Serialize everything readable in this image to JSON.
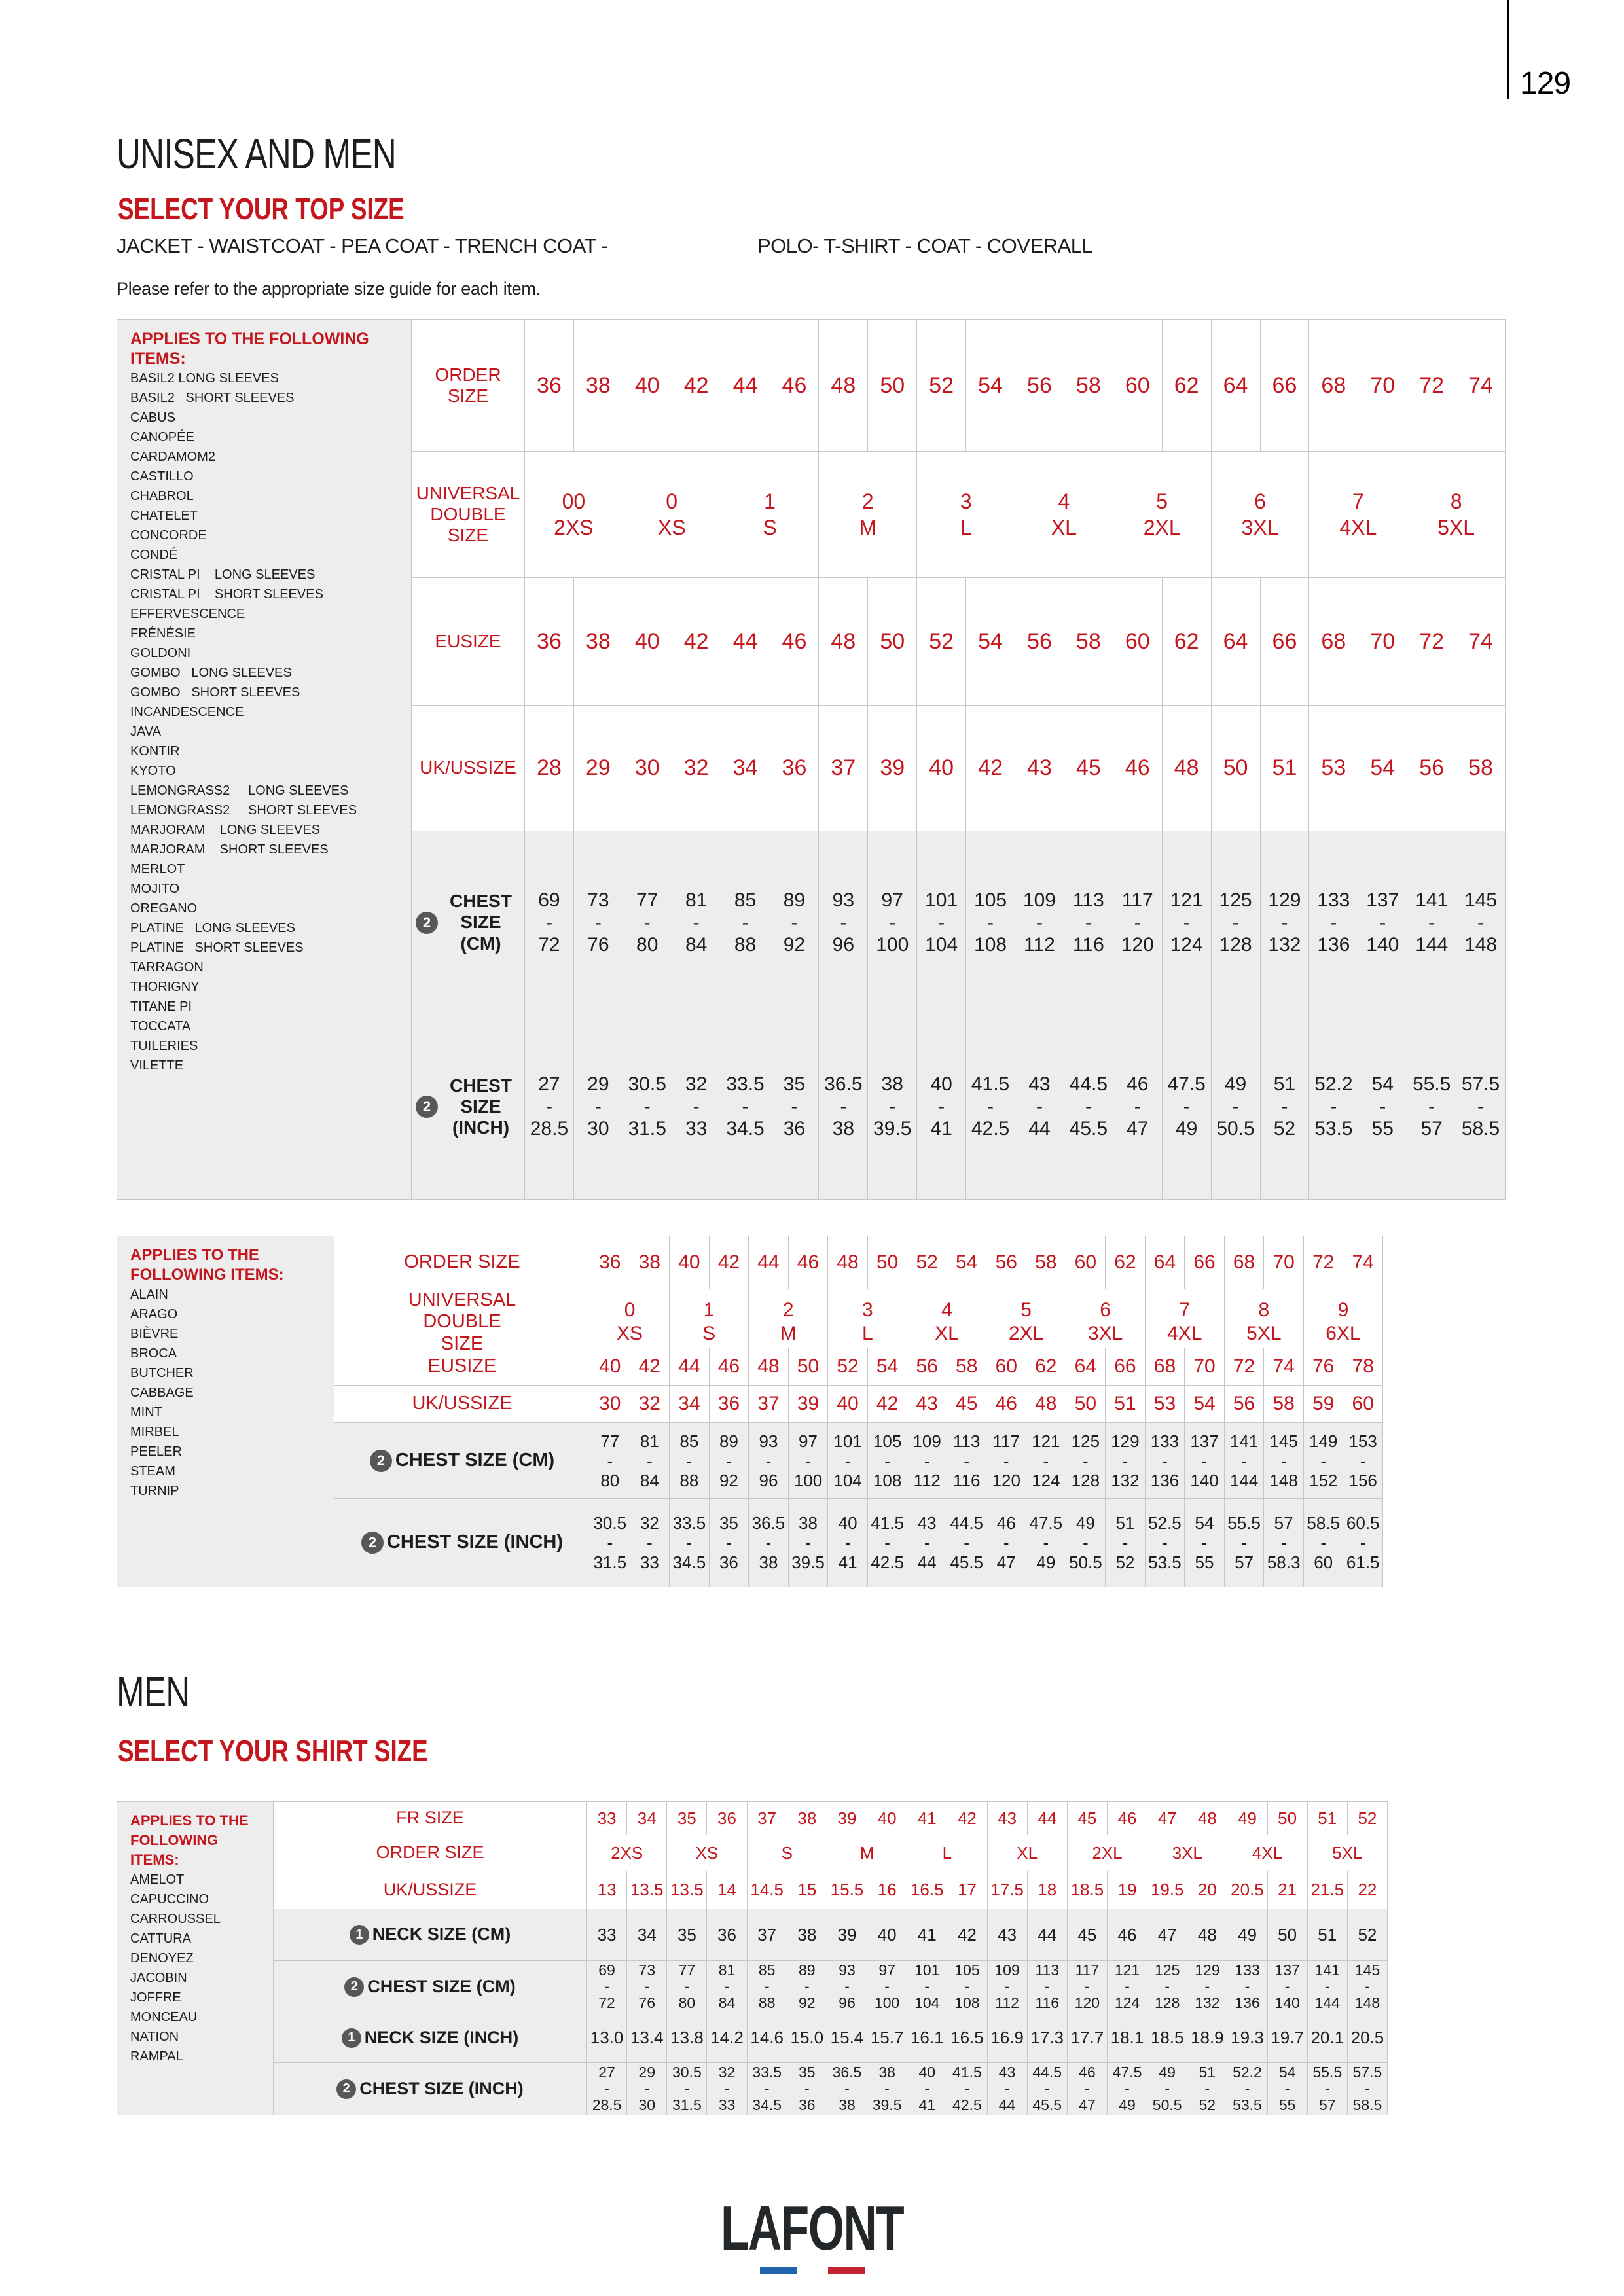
{
  "colors": {
    "red": "#c3161d",
    "ink": "#1d1d1b",
    "border": "#c6c6c6",
    "panel": "#ededed",
    "badge": "#575756",
    "logo-blue": "#2164ad",
    "logo-red": "#c32430"
  },
  "glyphs": {
    "range_dash": "-"
  },
  "page": {
    "number": "129"
  },
  "header": {
    "title": "UNISEX AND MEN",
    "subtitle": "SELECT YOUR TOP SIZE",
    "categories_left": "JACKET - WAISTCOAT - PEA COAT - TRENCH COAT -",
    "categories_right": "POLO- T-SHIRT - COAT - COVERALL",
    "note": "Please refer to the appropriate size guide for each item."
  },
  "men_header": {
    "title": "MEN",
    "subtitle": "SELECT YOUR SHIRT SIZE"
  },
  "footer": {
    "logo_text": "LAFONT"
  },
  "table1": {
    "applies_label": "APPLIES TO THE FOLLOWING ITEMS:",
    "items": [
      "BASIL2 LONG SLEEVES",
      "BASIL2   SHORT SLEEVES",
      "CABUS",
      "CANOPÉE",
      "CARDAMOM2",
      "CASTILLO",
      "CHABROL",
      "CHATELET",
      "CONCORDE",
      "CONDÉ",
      "CRISTAL PI    LONG SLEEVES",
      "CRISTAL PI    SHORT SLEEVES",
      "EFFERVESCENCE",
      "FRÉNÉSIE",
      "GOLDONI",
      "GOMBO   LONG SLEEVES",
      "GOMBO   SHORT SLEEVES",
      "INCANDESCENCE",
      "JAVA",
      "KONTIR",
      "KYOTO",
      "LEMONGRASS2     LONG SLEEVES",
      "LEMONGRASS2     SHORT SLEEVES",
      "MARJORAM    LONG SLEEVES",
      "MARJORAM    SHORT SLEEVES",
      "MERLOT",
      "MOJITO",
      "OREGANO",
      "PLATINE   LONG SLEEVES",
      "PLATINE   SHORT SLEEVES",
      "TARRAGON",
      "THORIGNY",
      "TITANE PI",
      "TOCCATA",
      "TUILERIES",
      "VILETTE"
    ],
    "order": {
      "label": "ORDER SIZE",
      "values": [
        "36",
        "38",
        "40",
        "42",
        "44",
        "46",
        "48",
        "50",
        "52",
        "54",
        "56",
        "58",
        "60",
        "62",
        "64",
        "66",
        "68",
        "70",
        "72",
        "74"
      ]
    },
    "universal": {
      "label": "UNIVERSAL DOUBLE SIZE",
      "values": [
        {
          "code": "00",
          "size": "2XS"
        },
        {
          "code": "0",
          "size": "XS"
        },
        {
          "code": "1",
          "size": "S"
        },
        {
          "code": "2",
          "size": "M"
        },
        {
          "code": "3",
          "size": "L"
        },
        {
          "code": "4",
          "size": "XL"
        },
        {
          "code": "5",
          "size": "2XL"
        },
        {
          "code": "6",
          "size": "3XL"
        },
        {
          "code": "7",
          "size": "4XL"
        },
        {
          "code": "8",
          "size": "5XL"
        }
      ]
    },
    "eu": {
      "label": "EUSIZE",
      "values": [
        "36",
        "38",
        "40",
        "42",
        "44",
        "46",
        "48",
        "50",
        "52",
        "54",
        "56",
        "58",
        "60",
        "62",
        "64",
        "66",
        "68",
        "70",
        "72",
        "74"
      ]
    },
    "ukus": {
      "label": "UK/USSIZE",
      "values": [
        "28",
        "29",
        "30",
        "32",
        "34",
        "36",
        "37",
        "39",
        "40",
        "42",
        "43",
        "45",
        "46",
        "48",
        "50",
        "51",
        "53",
        "54",
        "56",
        "58"
      ]
    },
    "chest_cm": {
      "label": "CHEST SIZE (CM)",
      "badge": "2",
      "values": [
        {
          "from": "69",
          "to": "72"
        },
        {
          "from": "73",
          "to": "76"
        },
        {
          "from": "77",
          "to": "80"
        },
        {
          "from": "81",
          "to": "84"
        },
        {
          "from": "85",
          "to": "88"
        },
        {
          "from": "89",
          "to": "92"
        },
        {
          "from": "93",
          "to": "96"
        },
        {
          "from": "97",
          "to": "100"
        },
        {
          "from": "101",
          "to": "104"
        },
        {
          "from": "105",
          "to": "108"
        },
        {
          "from": "109",
          "to": "112"
        },
        {
          "from": "113",
          "to": "116"
        },
        {
          "from": "117",
          "to": "120"
        },
        {
          "from": "121",
          "to": "124"
        },
        {
          "from": "125",
          "to": "128"
        },
        {
          "from": "129",
          "to": "132"
        },
        {
          "from": "133",
          "to": "136"
        },
        {
          "from": "137",
          "to": "140"
        },
        {
          "from": "141",
          "to": "144"
        },
        {
          "from": "145",
          "to": "148"
        }
      ]
    },
    "chest_inch": {
      "label": "CHEST SIZE (INCH)",
      "badge": "2",
      "values": [
        {
          "from": "27",
          "to": "28.5"
        },
        {
          "from": "29",
          "to": "30"
        },
        {
          "from": "30.5",
          "to": "31.5"
        },
        {
          "from": "32",
          "to": "33"
        },
        {
          "from": "33.5",
          "to": "34.5"
        },
        {
          "from": "35",
          "to": "36"
        },
        {
          "from": "36.5",
          "to": "38"
        },
        {
          "from": "38",
          "to": "39.5"
        },
        {
          "from": "40",
          "to": "41"
        },
        {
          "from": "41.5",
          "to": "42.5"
        },
        {
          "from": "43",
          "to": "44"
        },
        {
          "from": "44.5",
          "to": "45.5"
        },
        {
          "from": "46",
          "to": "47"
        },
        {
          "from": "47.5",
          "to": "49"
        },
        {
          "from": "49",
          "to": "50.5"
        },
        {
          "from": "51",
          "to": "52"
        },
        {
          "from": "52.2",
          "to": "53.5"
        },
        {
          "from": "54",
          "to": "55"
        },
        {
          "from": "55.5",
          "to": "57"
        },
        {
          "from": "57.5",
          "to": "58.5"
        }
      ]
    }
  },
  "table2": {
    "applies_label": "APPLIES TO THE FOLLOWING ITEMS:",
    "items": [
      "ALAIN",
      "ARAGO",
      "BIÈVRE",
      "BROCA",
      "BUTCHER",
      "CABBAGE",
      "MINT",
      "MIRBEL",
      "PEELER",
      "STEAM",
      "TURNIP"
    ],
    "order": {
      "label": "ORDER SIZE",
      "values": [
        "36",
        "38",
        "40",
        "42",
        "44",
        "46",
        "48",
        "50",
        "52",
        "54",
        "56",
        "58",
        "60",
        "62",
        "64",
        "66",
        "68",
        "70",
        "72",
        "74"
      ]
    },
    "universal": {
      "label": "UNIVERSAL DOUBLE SIZE",
      "values": [
        {
          "code": "0",
          "size": "XS"
        },
        {
          "code": "1",
          "size": "S"
        },
        {
          "code": "2",
          "size": "M"
        },
        {
          "code": "3",
          "size": "L"
        },
        {
          "code": "4",
          "size": "XL"
        },
        {
          "code": "5",
          "size": "2XL"
        },
        {
          "code": "6",
          "size": "3XL"
        },
        {
          "code": "7",
          "size": "4XL"
        },
        {
          "code": "8",
          "size": "5XL"
        },
        {
          "code": "9",
          "size": "6XL"
        }
      ]
    },
    "eu": {
      "label": "EUSIZE",
      "values": [
        "40",
        "42",
        "44",
        "46",
        "48",
        "50",
        "52",
        "54",
        "56",
        "58",
        "60",
        "62",
        "64",
        "66",
        "68",
        "70",
        "72",
        "74",
        "76",
        "78"
      ]
    },
    "ukus": {
      "label": "UK/USSIZE",
      "values": [
        "30",
        "32",
        "34",
        "36",
        "37",
        "39",
        "40",
        "42",
        "43",
        "45",
        "46",
        "48",
        "50",
        "51",
        "53",
        "54",
        "56",
        "58",
        "59",
        "60"
      ]
    },
    "chest_cm": {
      "label": "CHEST SIZE (CM)",
      "badge": "2",
      "values": [
        {
          "from": "77",
          "to": "80"
        },
        {
          "from": "81",
          "to": "84"
        },
        {
          "from": "85",
          "to": "88"
        },
        {
          "from": "89",
          "to": "92"
        },
        {
          "from": "93",
          "to": "96"
        },
        {
          "from": "97",
          "to": "100"
        },
        {
          "from": "101",
          "to": "104"
        },
        {
          "from": "105",
          "to": "108"
        },
        {
          "from": "109",
          "to": "112"
        },
        {
          "from": "113",
          "to": "116"
        },
        {
          "from": "117",
          "to": "120"
        },
        {
          "from": "121",
          "to": "124"
        },
        {
          "from": "125",
          "to": "128"
        },
        {
          "from": "129",
          "to": "132"
        },
        {
          "from": "133",
          "to": "136"
        },
        {
          "from": "137",
          "to": "140"
        },
        {
          "from": "141",
          "to": "144"
        },
        {
          "from": "145",
          "to": "148"
        },
        {
          "from": "149",
          "to": "152"
        },
        {
          "from": "153",
          "to": "156"
        }
      ]
    },
    "chest_inch": {
      "label": "CHEST SIZE (INCH)",
      "badge": "2",
      "values": [
        {
          "from": "30.5",
          "to": "31.5"
        },
        {
          "from": "32",
          "to": "33"
        },
        {
          "from": "33.5",
          "to": "34.5"
        },
        {
          "from": "35",
          "to": "36"
        },
        {
          "from": "36.5",
          "to": "38"
        },
        {
          "from": "38",
          "to": "39.5"
        },
        {
          "from": "40",
          "to": "41"
        },
        {
          "from": "41.5",
          "to": "42.5"
        },
        {
          "from": "43",
          "to": "44"
        },
        {
          "from": "44.5",
          "to": "45.5"
        },
        {
          "from": "46",
          "to": "47"
        },
        {
          "from": "47.5",
          "to": "49"
        },
        {
          "from": "49",
          "to": "50.5"
        },
        {
          "from": "51",
          "to": "52"
        },
        {
          "from": "52.5",
          "to": "53.5"
        },
        {
          "from": "54",
          "to": "55"
        },
        {
          "from": "55.5",
          "to": "57"
        },
        {
          "from": "57",
          "to": "58.3"
        },
        {
          "from": "58.5",
          "to": "60"
        },
        {
          "from": "60.5",
          "to": "61.5"
        }
      ]
    }
  },
  "table3": {
    "applies_label": "APPLIES TO THE FOLLOWING ITEMS:",
    "items": [
      "AMELOT",
      "CAPUCCINO",
      "CARROUSSEL",
      "CATTURA",
      "DENOYEZ",
      "JACOBIN",
      "JOFFRE",
      "MONCEAU",
      "NATION",
      "RAMPAL"
    ],
    "fr": {
      "label": "FR SIZE",
      "values": [
        "33",
        "34",
        "35",
        "36",
        "37",
        "38",
        "39",
        "40",
        "41",
        "42",
        "43",
        "44",
        "45",
        "46",
        "47",
        "48",
        "49",
        "50",
        "51",
        "52"
      ]
    },
    "order": {
      "label": "ORDER SIZE",
      "values": [
        "2XS",
        "XS",
        "S",
        "M",
        "L",
        "XL",
        "2XL",
        "3XL",
        "4XL",
        "5XL"
      ]
    },
    "ukus": {
      "label": "UK/USSIZE",
      "values": [
        "13",
        "13.5",
        "13.5",
        "14",
        "14.5",
        "15",
        "15.5",
        "16",
        "16.5",
        "17",
        "17.5",
        "18",
        "18.5",
        "19",
        "19.5",
        "20",
        "20.5",
        "21",
        "21.5",
        "22"
      ]
    },
    "neck_cm": {
      "label": "NECK SIZE (CM)",
      "badge": "1",
      "values": [
        "33",
        "34",
        "35",
        "36",
        "37",
        "38",
        "39",
        "40",
        "41",
        "42",
        "43",
        "44",
        "45",
        "46",
        "47",
        "48",
        "49",
        "50",
        "51",
        "52"
      ]
    },
    "chest_cm": {
      "label": "CHEST SIZE (CM)",
      "badge": "2",
      "values": [
        {
          "from": "69",
          "to": "72"
        },
        {
          "from": "73",
          "to": "76"
        },
        {
          "from": "77",
          "to": "80"
        },
        {
          "from": "81",
          "to": "84"
        },
        {
          "from": "85",
          "to": "88"
        },
        {
          "from": "89",
          "to": "92"
        },
        {
          "from": "93",
          "to": "96"
        },
        {
          "from": "97",
          "to": "100"
        },
        {
          "from": "101",
          "to": "104"
        },
        {
          "from": "105",
          "to": "108"
        },
        {
          "from": "109",
          "to": "112"
        },
        {
          "from": "113",
          "to": "116"
        },
        {
          "from": "117",
          "to": "120"
        },
        {
          "from": "121",
          "to": "124"
        },
        {
          "from": "125",
          "to": "128"
        },
        {
          "from": "129",
          "to": "132"
        },
        {
          "from": "133",
          "to": "136"
        },
        {
          "from": "137",
          "to": "140"
        },
        {
          "from": "141",
          "to": "144"
        },
        {
          "from": "145",
          "to": "148"
        }
      ]
    },
    "neck_inch": {
      "label": "NECK SIZE (INCH)",
      "badge": "1",
      "values": [
        "13.0",
        "13.4",
        "13.8",
        "14.2",
        "14.6",
        "15.0",
        "15.4",
        "15.7",
        "16.1",
        "16.5",
        "16.9",
        "17.3",
        "17.7",
        "18.1",
        "18.5",
        "18.9",
        "19.3",
        "19.7",
        "20.1",
        "20.5"
      ]
    },
    "chest_inch": {
      "label": "CHEST SIZE (INCH)",
      "badge": "2",
      "values": [
        {
          "from": "27",
          "to": "28.5"
        },
        {
          "from": "29",
          "to": "30"
        },
        {
          "from": "30.5",
          "to": "31.5"
        },
        {
          "from": "32",
          "to": "33"
        },
        {
          "from": "33.5",
          "to": "34.5"
        },
        {
          "from": "35",
          "to": "36"
        },
        {
          "from": "36.5",
          "to": "38"
        },
        {
          "from": "38",
          "to": "39.5"
        },
        {
          "from": "40",
          "to": "41"
        },
        {
          "from": "41.5",
          "to": "42.5"
        },
        {
          "from": "43",
          "to": "44"
        },
        {
          "from": "44.5",
          "to": "45.5"
        },
        {
          "from": "46",
          "to": "47"
        },
        {
          "from": "47.5",
          "to": "49"
        },
        {
          "from": "49",
          "to": "50.5"
        },
        {
          "from": "51",
          "to": "52"
        },
        {
          "from": "52.2",
          "to": "53.5"
        },
        {
          "from": "54",
          "to": "55"
        },
        {
          "from": "55.5",
          "to": "57"
        },
        {
          "from": "57.5",
          "to": "58.5"
        }
      ]
    }
  }
}
